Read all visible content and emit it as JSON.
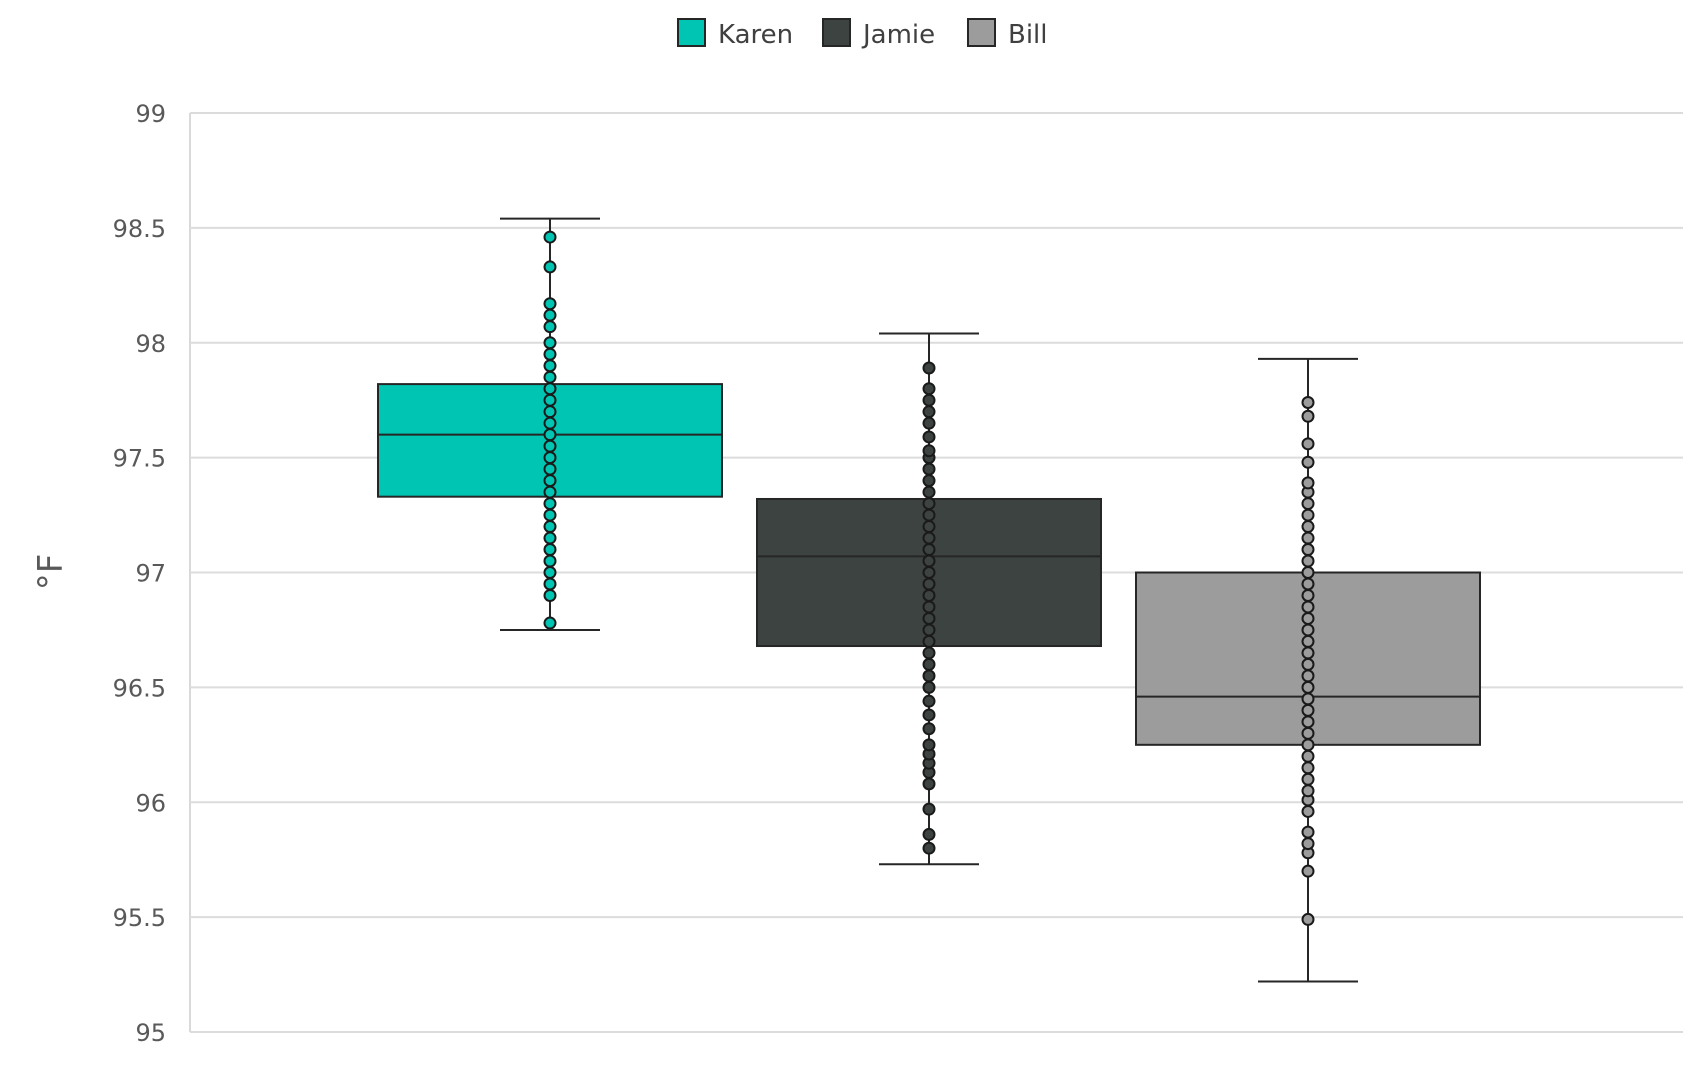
{
  "chart_data": {
    "type": "box",
    "title": "",
    "xlabel": "",
    "ylabel": "°F",
    "ylim": [
      95,
      99
    ],
    "yticks": [
      95,
      95.5,
      96,
      96.5,
      97,
      97.5,
      98,
      98.5,
      99
    ],
    "ytick_labels": [
      "95",
      "95.5",
      "96",
      "96.5",
      "97",
      "97.5",
      "98",
      "98.5",
      "99"
    ],
    "grid": true,
    "legend_position": "top-center",
    "series": [
      {
        "name": "Karen",
        "color": "#00C5B2",
        "stroke": "#2b2b2b",
        "whisker_low": 96.75,
        "q1": 97.33,
        "median": 97.6,
        "q3": 97.82,
        "whisker_high": 98.54,
        "points": [
          96.78,
          96.9,
          96.95,
          97.0,
          97.05,
          97.1,
          97.15,
          97.2,
          97.25,
          97.3,
          97.35,
          97.4,
          97.45,
          97.5,
          97.55,
          97.6,
          97.65,
          97.7,
          97.75,
          97.8,
          97.85,
          97.9,
          97.95,
          98.0,
          98.07,
          98.12,
          98.17,
          98.33,
          98.46
        ]
      },
      {
        "name": "Jamie",
        "color": "#3D4340",
        "stroke": "#1c1c1c",
        "whisker_low": 95.73,
        "q1": 96.68,
        "median": 97.07,
        "q3": 97.32,
        "whisker_high": 98.04,
        "points": [
          95.8,
          95.86,
          95.97,
          96.08,
          96.13,
          96.17,
          96.21,
          96.25,
          96.32,
          96.38,
          96.44,
          96.5,
          96.55,
          96.6,
          96.65,
          96.7,
          96.75,
          96.8,
          96.85,
          96.9,
          96.95,
          97.0,
          97.05,
          97.1,
          97.15,
          97.2,
          97.25,
          97.3,
          97.35,
          97.4,
          97.45,
          97.5,
          97.53,
          97.59,
          97.65,
          97.7,
          97.75,
          97.8,
          97.89
        ]
      },
      {
        "name": "Bill",
        "color": "#9C9C9C",
        "stroke": "#4a4a4a",
        "whisker_low": 95.22,
        "q1": 96.25,
        "median": 96.46,
        "q3": 97.0,
        "whisker_high": 97.93,
        "points": [
          95.49,
          95.7,
          95.78,
          95.82,
          95.87,
          95.96,
          96.01,
          96.05,
          96.1,
          96.15,
          96.2,
          96.25,
          96.3,
          96.35,
          96.4,
          96.45,
          96.5,
          96.55,
          96.6,
          96.65,
          96.7,
          96.75,
          96.8,
          96.85,
          96.9,
          96.95,
          97.0,
          97.05,
          97.1,
          97.15,
          97.2,
          97.25,
          97.3,
          97.35,
          97.39,
          97.48,
          97.56,
          97.68,
          97.74
        ]
      }
    ]
  }
}
